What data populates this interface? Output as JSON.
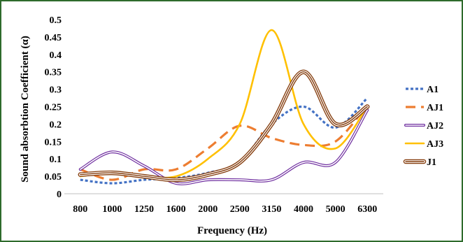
{
  "chart_data": {
    "type": "line",
    "title": "",
    "xlabel": "Frequency (Hz)",
    "ylabel": "Sound absorbtion Coefficient (α)",
    "categories": [
      "800",
      "1000",
      "1250",
      "1600",
      "2000",
      "2500",
      "3150",
      "4000",
      "5000",
      "6300"
    ],
    "yticks": [
      "0",
      "0.05",
      "0.1",
      "0.15",
      "0.2",
      "0.25",
      "0.3",
      "0.35",
      "0.4",
      "0.45",
      "0.5"
    ],
    "ylim": [
      0,
      0.5
    ],
    "grid": false,
    "legend_position": "right",
    "smooth": true,
    "series": [
      {
        "name": "A1",
        "color": "#4472c4",
        "style": "dotted",
        "values": [
          0.04,
          0.03,
          0.04,
          0.045,
          0.06,
          0.09,
          0.2,
          0.25,
          0.19,
          0.275
        ]
      },
      {
        "name": "AJ1",
        "color": "#ed7d31",
        "style": "dashed",
        "values": [
          0.07,
          0.04,
          0.07,
          0.07,
          0.13,
          0.195,
          0.16,
          0.14,
          0.15,
          0.255
        ]
      },
      {
        "name": "AJ2",
        "color": "#7030a0",
        "style": "double",
        "values": [
          0.07,
          0.12,
          0.08,
          0.03,
          0.04,
          0.04,
          0.04,
          0.09,
          0.09,
          0.24
        ]
      },
      {
        "name": "AJ3",
        "color": "#ffc000",
        "style": "solid",
        "values": [
          0.05,
          0.06,
          0.05,
          0.05,
          0.1,
          0.2,
          0.47,
          0.2,
          0.13,
          0.25
        ]
      },
      {
        "name": "J1",
        "color": "#843c0c",
        "style": "triple",
        "values": [
          0.055,
          0.06,
          0.05,
          0.04,
          0.055,
          0.09,
          0.2,
          0.35,
          0.2,
          0.25
        ]
      }
    ]
  }
}
